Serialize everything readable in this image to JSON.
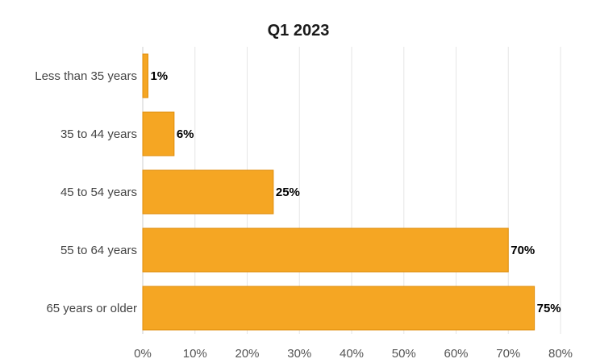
{
  "chart_data": {
    "type": "bar",
    "orientation": "horizontal",
    "title": "Q1 2023",
    "categories": [
      "Less than 35 years",
      "35 to 44 years",
      "45 to 54 years",
      "55 to 64 years",
      "65 years or older"
    ],
    "values": [
      1,
      6,
      25,
      70,
      75
    ],
    "value_labels": [
      "1%",
      "6%",
      "25%",
      "70%",
      "75%"
    ],
    "xlabel": "",
    "ylabel": "",
    "xlim": [
      0,
      80
    ],
    "ticks": [
      0,
      10,
      20,
      30,
      40,
      50,
      60,
      70,
      80
    ],
    "tick_labels": [
      "0%",
      "10%",
      "20%",
      "30%",
      "40%",
      "50%",
      "60%",
      "70%",
      "80%"
    ],
    "grid": true,
    "legend": "none",
    "bar_color": "#f5a623"
  }
}
